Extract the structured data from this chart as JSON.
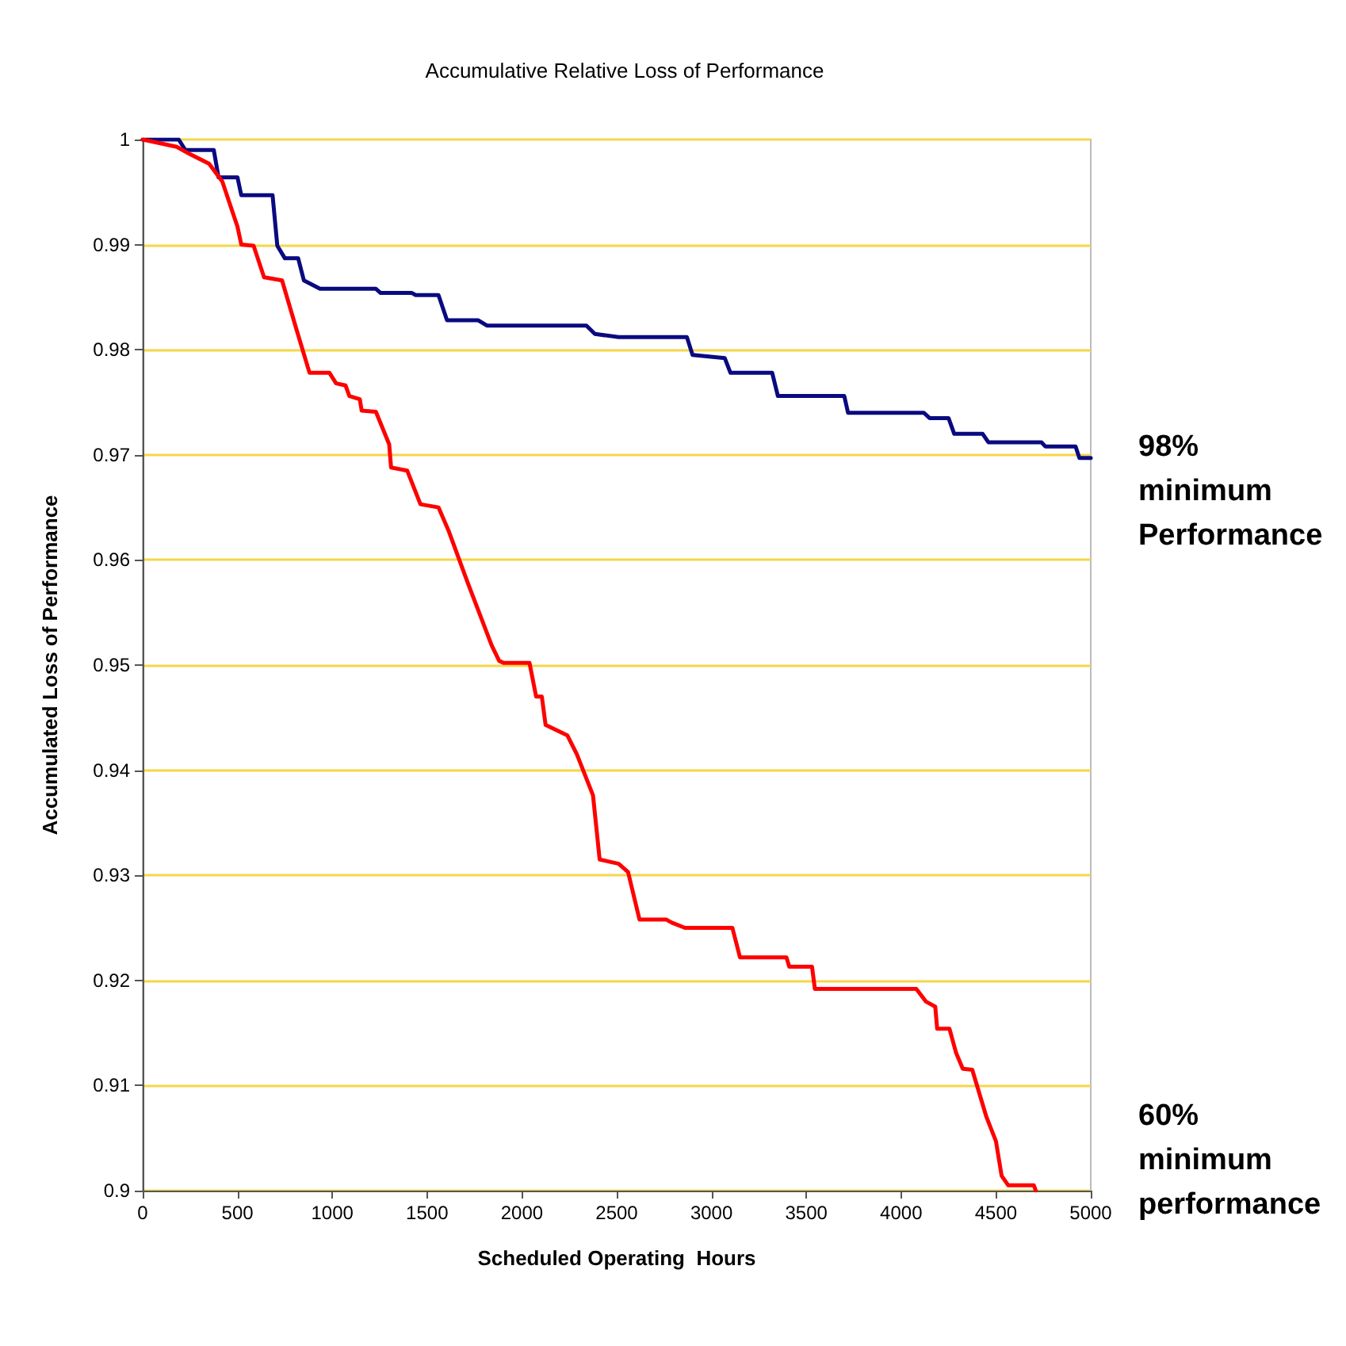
{
  "chart_data": {
    "type": "line",
    "title": "Accumulative Relative Loss of Performance",
    "xlabel": "Scheduled Operating  Hours",
    "ylabel": "Accumulated Loss of Performance",
    "annotations": [
      "98% minimum Performance",
      "60% minimum performance"
    ],
    "xlim": [
      0,
      5000
    ],
    "xticks": [
      0,
      500,
      1000,
      1500,
      2000,
      2500,
      3000,
      3500,
      4000,
      4500,
      5000
    ],
    "ylim": [
      0.9,
      1
    ],
    "yticks": [
      0.9,
      0.91,
      0.92,
      0.93,
      0.94,
      0.95,
      0.96,
      0.97,
      0.98,
      0.99,
      1
    ],
    "grid": "y",
    "marker": "none",
    "line_style": "solid",
    "series": [
      {
        "color": "#0a0a80",
        "x": [
          0,
          190,
          225,
          375,
          400,
          500,
          520,
          685,
          710,
          750,
          820,
          850,
          935,
          1230,
          1255,
          1420,
          1440,
          1560,
          1605,
          1770,
          1815,
          2340,
          2385,
          2510,
          2870,
          2900,
          3070,
          3100,
          3320,
          3350,
          3700,
          3720,
          4120,
          4150,
          4250,
          4280,
          4430,
          4460,
          4740,
          4760,
          4920,
          4940,
          5000
        ],
        "values": [
          1,
          1,
          0.999,
          0.999,
          0.9964,
          0.9964,
          0.9947,
          0.9947,
          0.9899,
          0.9887,
          0.9887,
          0.9866,
          0.9858,
          0.9858,
          0.9854,
          0.9854,
          0.9852,
          0.9852,
          0.9828,
          0.9828,
          0.9823,
          0.9823,
          0.9815,
          0.9812,
          0.9812,
          0.9795,
          0.9792,
          0.9778,
          0.9778,
          0.9756,
          0.9756,
          0.974,
          0.974,
          0.9735,
          0.9735,
          0.972,
          0.972,
          0.9712,
          0.9712,
          0.9708,
          0.9708,
          0.9697,
          0.9697
        ]
      },
      {
        "color": "#ff0000",
        "x": [
          0,
          180,
          250,
          350,
          420,
          500,
          520,
          585,
          640,
          735,
          810,
          880,
          985,
          1020,
          1070,
          1090,
          1145,
          1155,
          1230,
          1300,
          1310,
          1395,
          1465,
          1560,
          1615,
          1715,
          1840,
          1880,
          1905,
          2040,
          2075,
          2105,
          2125,
          2240,
          2290,
          2375,
          2410,
          2510,
          2560,
          2620,
          2760,
          2790,
          2860,
          3110,
          3150,
          3395,
          3410,
          3530,
          3545,
          4080,
          4130,
          4180,
          4190,
          4255,
          4290,
          4325,
          4375,
          4450,
          4500,
          4530,
          4565,
          4700,
          4710
        ],
        "values": [
          1,
          0.9993,
          0.9986,
          0.9977,
          0.996,
          0.9917,
          0.99,
          0.9899,
          0.9869,
          0.9866,
          0.982,
          0.9778,
          0.9778,
          0.9768,
          0.9766,
          0.9756,
          0.9753,
          0.9742,
          0.9741,
          0.971,
          0.9688,
          0.9685,
          0.9653,
          0.965,
          0.9627,
          0.9578,
          0.9519,
          0.9504,
          0.9502,
          0.9502,
          0.947,
          0.947,
          0.9443,
          0.9433,
          0.9415,
          0.9376,
          0.9315,
          0.9311,
          0.9303,
          0.9258,
          0.9258,
          0.9255,
          0.925,
          0.925,
          0.9222,
          0.9222,
          0.9213,
          0.9213,
          0.9192,
          0.9192,
          0.918,
          0.9175,
          0.9154,
          0.9154,
          0.9131,
          0.9116,
          0.9115,
          0.907,
          0.9047,
          0.9014,
          0.9005,
          0.9005,
          0.9
        ]
      }
    ]
  }
}
